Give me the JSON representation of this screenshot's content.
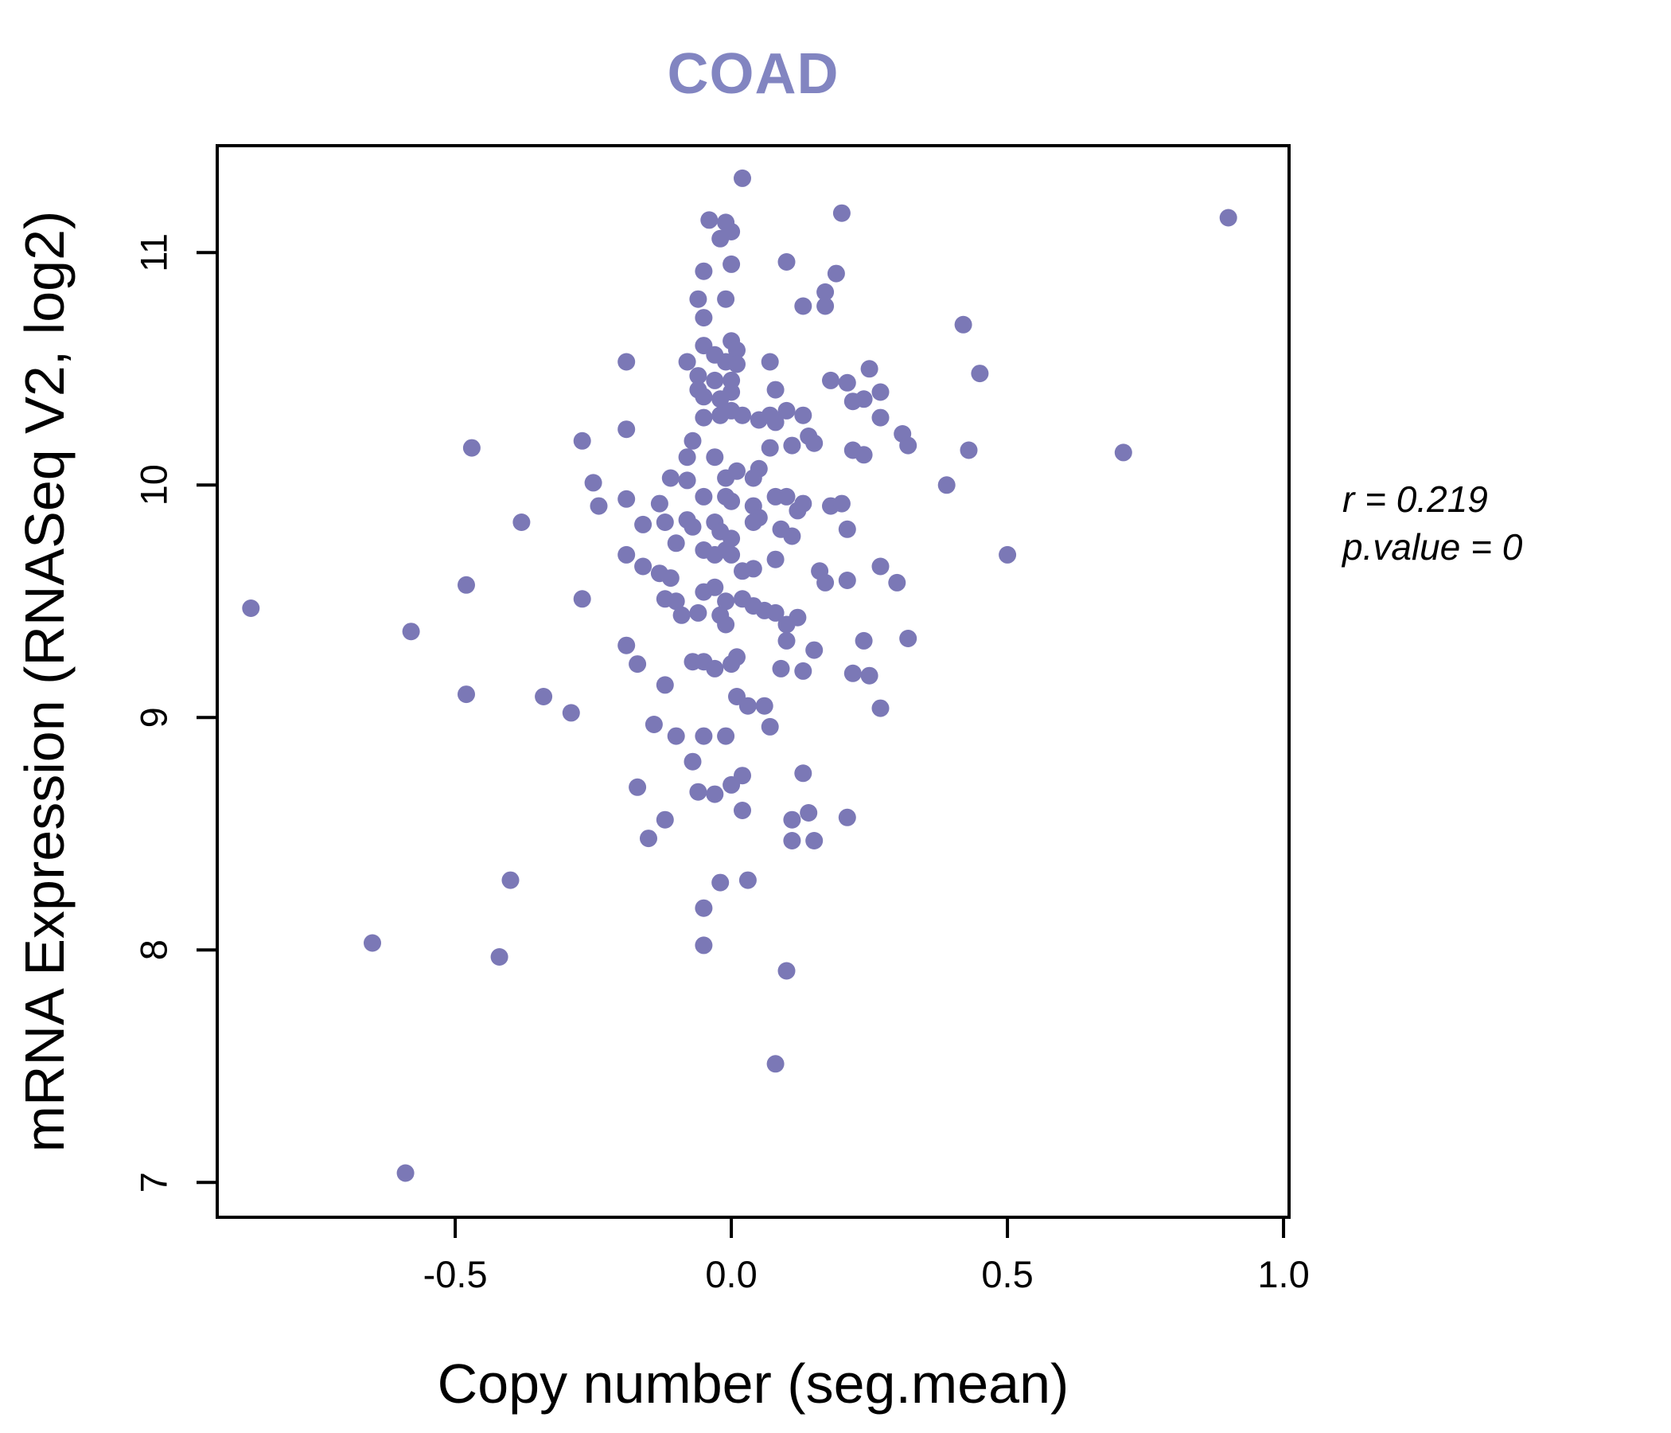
{
  "title": "COAD",
  "title_color": "#8285c1",
  "point_color": "#7b78b6",
  "axis_color": "#000000",
  "annotation": {
    "r_text": "r = 0.219",
    "p_text": "p.value = 0"
  },
  "chart_data": {
    "type": "scatter",
    "title": "COAD",
    "xlabel": "Copy number (seg.mean)",
    "ylabel": "mRNA Expression (RNASeq V2, log2)",
    "x_ticks": [
      -0.5,
      0.0,
      0.5,
      1.0
    ],
    "x_tick_labels": [
      "-0.5",
      "0.0",
      "0.5",
      "1.0"
    ],
    "y_ticks": [
      7,
      8,
      9,
      10,
      11
    ],
    "y_tick_labels": [
      "7",
      "8",
      "9",
      "10",
      "11"
    ],
    "xlim": [
      -0.931,
      1.01
    ],
    "ylim": [
      6.85,
      11.46
    ],
    "grid": false,
    "legend": null,
    "correlation_r": 0.219,
    "p_value": 0,
    "points": [
      [
        0.02,
        11.32
      ],
      [
        0.2,
        11.17
      ],
      [
        -0.04,
        11.14
      ],
      [
        -0.01,
        11.13
      ],
      [
        0.0,
        11.09
      ],
      [
        -0.02,
        11.06
      ],
      [
        0.1,
        10.96
      ],
      [
        0.0,
        10.95
      ],
      [
        -0.05,
        10.92
      ],
      [
        0.19,
        10.91
      ],
      [
        -0.06,
        10.8
      ],
      [
        -0.01,
        10.8
      ],
      [
        0.17,
        10.83
      ],
      [
        0.17,
        10.77
      ],
      [
        0.13,
        10.77
      ],
      [
        -0.05,
        10.72
      ],
      [
        0.42,
        10.69
      ],
      [
        -0.19,
        10.53
      ],
      [
        -0.05,
        10.6
      ],
      [
        0.0,
        10.62
      ],
      [
        0.01,
        10.58
      ],
      [
        -0.08,
        10.53
      ],
      [
        -0.06,
        10.47
      ],
      [
        -0.03,
        10.56
      ],
      [
        -0.01,
        10.53
      ],
      [
        0.01,
        10.52
      ],
      [
        -0.06,
        10.41
      ],
      [
        -0.03,
        10.45
      ],
      [
        0.0,
        10.45
      ],
      [
        0.0,
        10.4
      ],
      [
        -0.05,
        10.38
      ],
      [
        -0.02,
        10.37
      ],
      [
        0.0,
        10.32
      ],
      [
        -0.02,
        10.3
      ],
      [
        -0.05,
        10.29
      ],
      [
        0.02,
        10.3
      ],
      [
        0.07,
        10.53
      ],
      [
        0.08,
        10.41
      ],
      [
        0.1,
        10.32
      ],
      [
        0.13,
        10.3
      ],
      [
        0.18,
        10.45
      ],
      [
        0.21,
        10.44
      ],
      [
        0.22,
        10.36
      ],
      [
        0.24,
        10.37
      ],
      [
        0.25,
        10.5
      ],
      [
        0.27,
        10.4
      ],
      [
        0.45,
        10.48
      ],
      [
        0.31,
        10.22
      ],
      [
        0.32,
        10.17
      ],
      [
        0.22,
        10.15
      ],
      [
        0.24,
        10.13
      ],
      [
        0.14,
        10.21
      ],
      [
        0.15,
        10.18
      ],
      [
        0.07,
        10.3
      ],
      [
        0.05,
        10.28
      ],
      [
        0.08,
        10.27
      ],
      [
        0.11,
        10.17
      ],
      [
        0.07,
        10.16
      ],
      [
        0.05,
        10.07
      ],
      [
        0.01,
        10.06
      ],
      [
        -0.01,
        10.03
      ],
      [
        -0.03,
        10.12
      ],
      [
        -0.07,
        10.19
      ],
      [
        -0.08,
        10.12
      ],
      [
        -0.08,
        10.02
      ],
      [
        -0.11,
        10.03
      ],
      [
        -0.19,
        10.24
      ],
      [
        -0.25,
        10.01
      ],
      [
        0.27,
        10.29
      ],
      [
        0.04,
        10.03
      ],
      [
        -0.47,
        10.16
      ],
      [
        -0.27,
        10.19
      ],
      [
        0.43,
        10.15
      ],
      [
        0.71,
        10.14
      ],
      [
        0.39,
        10.0
      ],
      [
        0.9,
        11.15
      ],
      [
        -0.24,
        9.91
      ],
      [
        -0.19,
        9.94
      ],
      [
        -0.13,
        9.92
      ],
      [
        -0.08,
        9.85
      ],
      [
        -0.05,
        9.95
      ],
      [
        -0.01,
        9.95
      ],
      [
        0.0,
        9.93
      ],
      [
        0.04,
        9.91
      ],
      [
        0.05,
        9.86
      ],
      [
        0.08,
        9.95
      ],
      [
        0.1,
        9.95
      ],
      [
        0.12,
        9.89
      ],
      [
        0.13,
        9.92
      ],
      [
        0.18,
        9.91
      ],
      [
        0.2,
        9.92
      ],
      [
        0.21,
        9.81
      ],
      [
        -0.16,
        9.83
      ],
      [
        -0.12,
        9.84
      ],
      [
        -0.07,
        9.82
      ],
      [
        -0.03,
        9.84
      ],
      [
        -0.02,
        9.8
      ],
      [
        0.0,
        9.77
      ],
      [
        0.04,
        9.84
      ],
      [
        0.09,
        9.81
      ],
      [
        0.11,
        9.78
      ],
      [
        -0.1,
        9.75
      ],
      [
        -0.19,
        9.7
      ],
      [
        -0.16,
        9.65
      ],
      [
        -0.13,
        9.62
      ],
      [
        -0.11,
        9.6
      ],
      [
        -0.05,
        9.72
      ],
      [
        -0.03,
        9.7
      ],
      [
        -0.01,
        9.72
      ],
      [
        0.0,
        9.7
      ],
      [
        0.02,
        9.63
      ],
      [
        0.04,
        9.64
      ],
      [
        0.08,
        9.68
      ],
      [
        0.16,
        9.63
      ],
      [
        0.17,
        9.58
      ],
      [
        0.21,
        9.59
      ],
      [
        0.27,
        9.65
      ],
      [
        0.3,
        9.58
      ],
      [
        -0.38,
        9.84
      ],
      [
        -0.48,
        9.57
      ],
      [
        -0.87,
        9.47
      ],
      [
        -0.58,
        9.37
      ],
      [
        -0.27,
        9.51
      ],
      [
        -0.12,
        9.51
      ],
      [
        -0.1,
        9.5
      ],
      [
        -0.09,
        9.44
      ],
      [
        -0.06,
        9.45
      ],
      [
        -0.05,
        9.54
      ],
      [
        -0.03,
        9.56
      ],
      [
        -0.01,
        9.5
      ],
      [
        -0.02,
        9.44
      ],
      [
        -0.01,
        9.4
      ],
      [
        0.02,
        9.51
      ],
      [
        0.04,
        9.48
      ],
      [
        0.06,
        9.46
      ],
      [
        0.08,
        9.45
      ],
      [
        0.1,
        9.4
      ],
      [
        0.12,
        9.43
      ],
      [
        0.1,
        9.33
      ],
      [
        0.15,
        9.29
      ],
      [
        0.24,
        9.33
      ],
      [
        0.25,
        9.18
      ],
      [
        0.32,
        9.34
      ],
      [
        0.5,
        9.7
      ],
      [
        -0.19,
        9.31
      ],
      [
        -0.17,
        9.23
      ],
      [
        -0.12,
        9.14
      ],
      [
        -0.07,
        9.24
      ],
      [
        -0.05,
        9.24
      ],
      [
        -0.03,
        9.21
      ],
      [
        0.0,
        9.23
      ],
      [
        0.01,
        9.26
      ],
      [
        0.09,
        9.21
      ],
      [
        0.13,
        9.2
      ],
      [
        0.22,
        9.19
      ],
      [
        -0.48,
        9.1
      ],
      [
        -0.34,
        9.09
      ],
      [
        0.01,
        9.09
      ],
      [
        0.03,
        9.05
      ],
      [
        0.06,
        9.05
      ],
      [
        0.07,
        8.96
      ],
      [
        -0.14,
        8.97
      ],
      [
        -0.1,
        8.92
      ],
      [
        -0.05,
        8.92
      ],
      [
        -0.01,
        8.92
      ],
      [
        -0.29,
        9.02
      ],
      [
        0.27,
        9.04
      ],
      [
        -0.07,
        8.81
      ],
      [
        0.02,
        8.75
      ],
      [
        0.13,
        8.76
      ],
      [
        -0.06,
        8.68
      ],
      [
        -0.03,
        8.67
      ],
      [
        0.0,
        8.71
      ],
      [
        -0.17,
        8.7
      ],
      [
        -0.12,
        8.56
      ],
      [
        0.02,
        8.6
      ],
      [
        0.11,
        8.56
      ],
      [
        0.14,
        8.59
      ],
      [
        0.21,
        8.57
      ],
      [
        0.11,
        8.47
      ],
      [
        0.15,
        8.47
      ],
      [
        -0.15,
        8.48
      ],
      [
        -0.4,
        8.3
      ],
      [
        -0.02,
        8.29
      ],
      [
        0.03,
        8.3
      ],
      [
        -0.05,
        8.18
      ],
      [
        -0.65,
        8.03
      ],
      [
        -0.42,
        7.97
      ],
      [
        -0.05,
        8.02
      ],
      [
        0.1,
        7.91
      ],
      [
        0.08,
        7.51
      ],
      [
        -0.59,
        7.04
      ]
    ]
  }
}
